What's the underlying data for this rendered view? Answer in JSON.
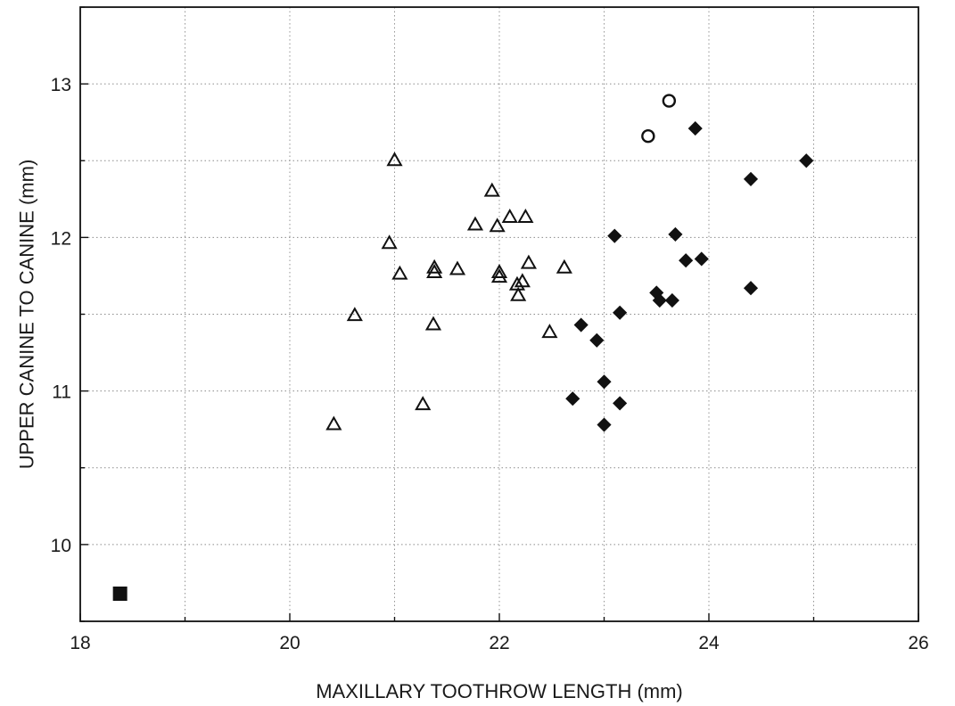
{
  "chart_data": {
    "type": "scatter",
    "title": "",
    "xlabel": "MAXILLARY TOOTHROW LENGTH (mm)",
    "ylabel": "UPPER CANINE TO CANINE (mm)",
    "xlim": [
      18,
      26
    ],
    "ylim": [
      9.5,
      13.5
    ],
    "x_ticks": [
      18,
      20,
      22,
      24,
      26
    ],
    "y_ticks": [
      10,
      11,
      12,
      13
    ],
    "x_minor_step": 1,
    "y_minor_step": 0.5,
    "grid": true,
    "legend": false,
    "series": [
      {
        "marker": "open-triangle",
        "color": "#111111",
        "points": [
          [
            20.42,
            10.78
          ],
          [
            20.62,
            11.49
          ],
          [
            20.95,
            11.96
          ],
          [
            21.0,
            12.5
          ],
          [
            21.05,
            11.76
          ],
          [
            21.27,
            10.91
          ],
          [
            21.37,
            11.43
          ],
          [
            21.38,
            11.77
          ],
          [
            21.38,
            11.8
          ],
          [
            21.6,
            11.79
          ],
          [
            21.77,
            12.08
          ],
          [
            21.93,
            12.3
          ],
          [
            21.98,
            12.07
          ],
          [
            22.0,
            11.77
          ],
          [
            22.0,
            11.74
          ],
          [
            22.1,
            12.13
          ],
          [
            22.17,
            11.69
          ],
          [
            22.18,
            11.62
          ],
          [
            22.22,
            11.71
          ],
          [
            22.25,
            12.13
          ],
          [
            22.28,
            11.83
          ],
          [
            22.48,
            11.38
          ],
          [
            22.62,
            11.8
          ]
        ]
      },
      {
        "marker": "filled-diamond",
        "color": "#111111",
        "points": [
          [
            22.7,
            10.95
          ],
          [
            22.78,
            11.43
          ],
          [
            22.93,
            11.33
          ],
          [
            23.0,
            11.06
          ],
          [
            23.0,
            10.78
          ],
          [
            23.1,
            12.01
          ],
          [
            23.15,
            11.51
          ],
          [
            23.15,
            10.92
          ],
          [
            23.5,
            11.64
          ],
          [
            23.53,
            11.59
          ],
          [
            23.65,
            11.59
          ],
          [
            23.68,
            12.02
          ],
          [
            23.78,
            11.85
          ],
          [
            23.87,
            12.71
          ],
          [
            23.93,
            11.86
          ],
          [
            24.4,
            12.38
          ],
          [
            24.4,
            11.67
          ],
          [
            24.93,
            12.5
          ]
        ]
      },
      {
        "marker": "open-circle",
        "color": "#111111",
        "points": [
          [
            23.42,
            12.66
          ],
          [
            23.62,
            12.89
          ]
        ]
      },
      {
        "marker": "filled-square",
        "color": "#111111",
        "points": [
          [
            18.38,
            9.68
          ]
        ]
      }
    ]
  }
}
